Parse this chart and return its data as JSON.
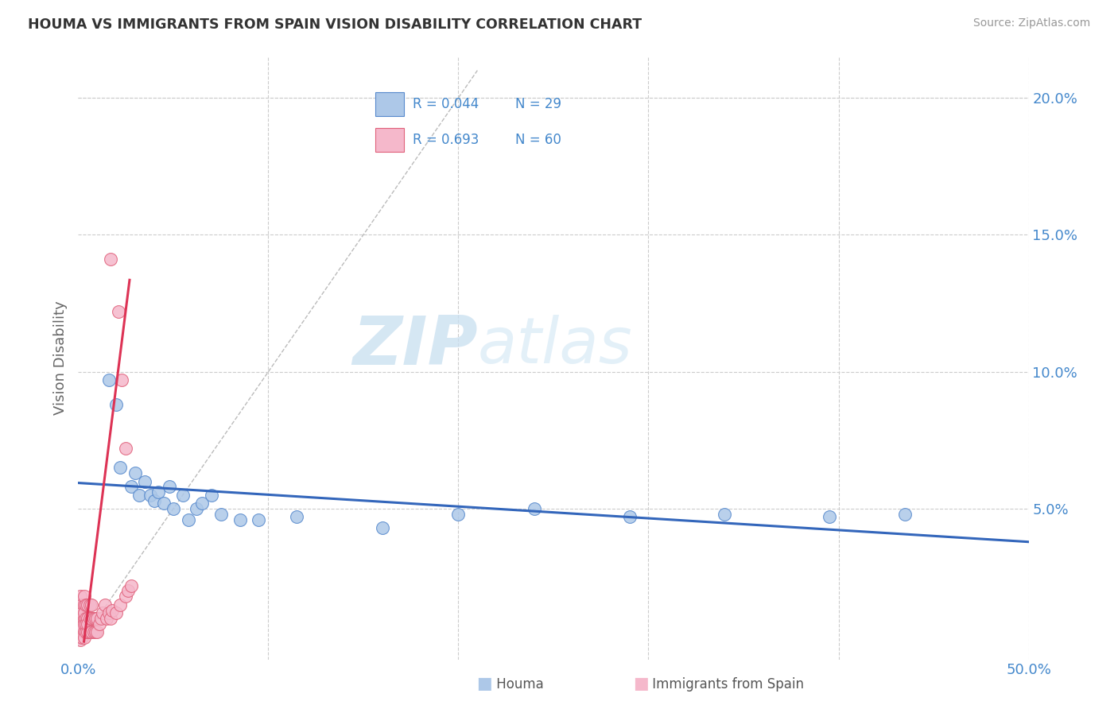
{
  "title": "HOUMA VS IMMIGRANTS FROM SPAIN VISION DISABILITY CORRELATION CHART",
  "source": "Source: ZipAtlas.com",
  "ylabel": "Vision Disability",
  "xlabel_houma": "Houma",
  "xlabel_spain": "Immigrants from Spain",
  "watermark_zip": "ZIP",
  "watermark_atlas": "atlas",
  "xlim": [
    0.0,
    0.5
  ],
  "ylim": [
    -0.005,
    0.215
  ],
  "xticks": [
    0.0,
    0.1,
    0.2,
    0.3,
    0.4,
    0.5
  ],
  "yticks": [
    0.0,
    0.05,
    0.1,
    0.15,
    0.2
  ],
  "xtick_labels": [
    "0.0%",
    "",
    "",
    "",
    "",
    "50.0%"
  ],
  "ytick_labels_right": [
    "",
    "5.0%",
    "10.0%",
    "15.0%",
    "20.0%"
  ],
  "legend_R_houma": "R = 0.044",
  "legend_N_houma": "N = 29",
  "legend_R_spain": "R = 0.693",
  "legend_N_spain": "N = 60",
  "houma_color": "#adc8e8",
  "houma_edge": "#5588cc",
  "spain_color": "#f5b8cb",
  "spain_edge": "#e0607a",
  "line_houma_color": "#3366bb",
  "line_spain_color": "#dd3355",
  "background_color": "#ffffff",
  "grid_color": "#cccccc",
  "title_color": "#333333",
  "axis_label_color": "#4488cc",
  "houma_x": [
    0.016,
    0.02,
    0.022,
    0.028,
    0.03,
    0.032,
    0.035,
    0.038,
    0.04,
    0.042,
    0.045,
    0.048,
    0.05,
    0.055,
    0.058,
    0.062,
    0.065,
    0.07,
    0.075,
    0.085,
    0.095,
    0.115,
    0.16,
    0.2,
    0.24,
    0.29,
    0.34,
    0.395,
    0.435
  ],
  "houma_y": [
    0.097,
    0.088,
    0.065,
    0.058,
    0.063,
    0.055,
    0.06,
    0.055,
    0.053,
    0.056,
    0.052,
    0.058,
    0.05,
    0.055,
    0.046,
    0.05,
    0.052,
    0.055,
    0.048,
    0.046,
    0.046,
    0.047,
    0.043,
    0.048,
    0.05,
    0.047,
    0.048,
    0.047,
    0.048
  ],
  "spain_x": [
    0.001,
    0.001,
    0.001,
    0.001,
    0.001,
    0.001,
    0.001,
    0.001,
    0.001,
    0.002,
    0.002,
    0.002,
    0.002,
    0.002,
    0.002,
    0.002,
    0.003,
    0.003,
    0.003,
    0.003,
    0.003,
    0.003,
    0.003,
    0.004,
    0.004,
    0.004,
    0.004,
    0.005,
    0.005,
    0.005,
    0.005,
    0.006,
    0.006,
    0.006,
    0.007,
    0.007,
    0.007,
    0.008,
    0.008,
    0.009,
    0.009,
    0.01,
    0.01,
    0.011,
    0.012,
    0.013,
    0.014,
    0.015,
    0.016,
    0.017,
    0.018,
    0.02,
    0.022,
    0.025,
    0.026,
    0.028,
    0.017,
    0.021,
    0.023,
    0.025
  ],
  "spain_y": [
    0.01,
    0.008,
    0.012,
    0.015,
    0.005,
    0.003,
    0.018,
    0.007,
    0.002,
    0.005,
    0.01,
    0.015,
    0.008,
    0.003,
    0.012,
    0.007,
    0.005,
    0.01,
    0.015,
    0.008,
    0.003,
    0.012,
    0.018,
    0.005,
    0.01,
    0.015,
    0.008,
    0.005,
    0.01,
    0.015,
    0.008,
    0.005,
    0.01,
    0.015,
    0.005,
    0.01,
    0.015,
    0.005,
    0.01,
    0.005,
    0.01,
    0.005,
    0.01,
    0.008,
    0.01,
    0.012,
    0.015,
    0.01,
    0.012,
    0.01,
    0.013,
    0.012,
    0.015,
    0.018,
    0.02,
    0.022,
    0.141,
    0.122,
    0.097,
    0.072
  ]
}
